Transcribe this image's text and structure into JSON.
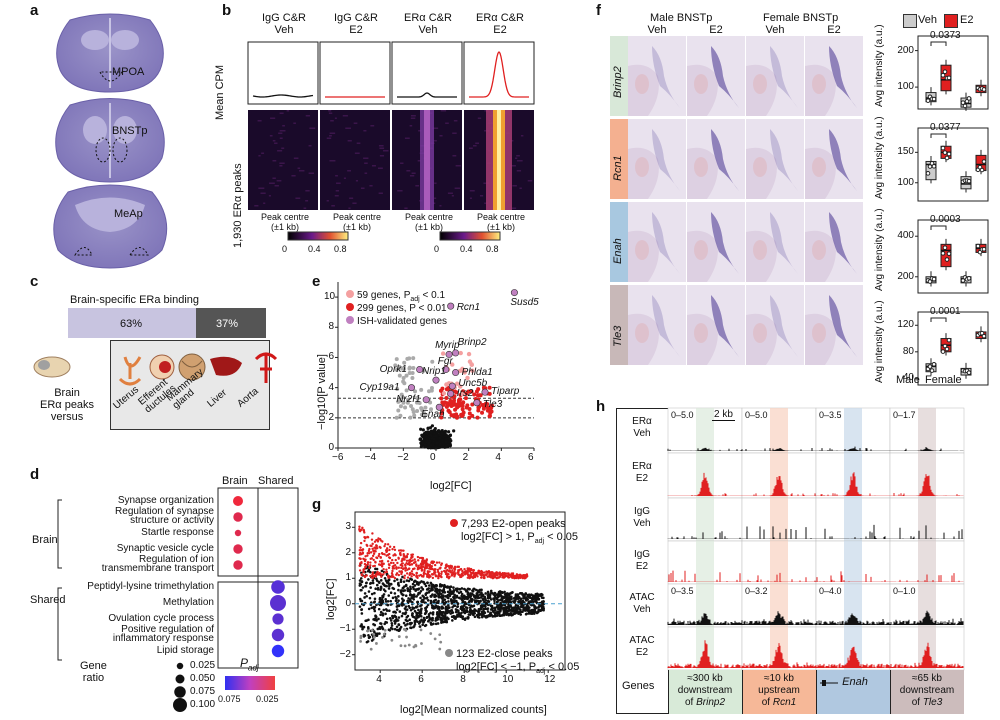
{
  "panels": {
    "a": "a",
    "b": "b",
    "c": "c",
    "d": "d",
    "e": "e",
    "f": "f",
    "g": "g",
    "h": "h"
  },
  "a": {
    "labels": [
      "MPOA",
      "BNSTp",
      "MeAp"
    ]
  },
  "b": {
    "cols": [
      {
        "t1": "IgG C&R",
        "t2": "Veh"
      },
      {
        "t1": "IgG C&R",
        "t2": "E2"
      },
      {
        "t1": "ERα C&R",
        "t2": "Veh"
      },
      {
        "t1": "ERα C&R",
        "t2": "E2"
      }
    ],
    "ylabel_top": "Mean CPM",
    "ylabel_bottom": "1,930 ERα peaks",
    "x1": "Peak centre",
    "x2": "(±1 kb)",
    "cbar": [
      "0",
      "0.4",
      "0.8"
    ]
  },
  "c": {
    "title": "Brain-specific ERa binding",
    "bar": {
      "brain_pct": "63%",
      "shared_pct": "37%",
      "brain_value": 63,
      "shared_value": 37
    },
    "left_label": [
      "Brain",
      "ERα peaks",
      "versus"
    ],
    "tissues": [
      "Uterus",
      "Efferent ductules",
      "Mammary gland",
      "Liver",
      "Aorta"
    ]
  },
  "d": {
    "cols": [
      "Brain",
      "Shared"
    ],
    "groups": [
      "Brain",
      "Shared"
    ],
    "terms": [
      {
        "l1": "Synapse organization",
        "l2": "",
        "group": "Brain",
        "col": 0,
        "size": 0.05,
        "padj": 0.025
      },
      {
        "l1": "Regulation of synapse",
        "l2": "structure or activity",
        "group": "Brain",
        "col": 0,
        "size": 0.045,
        "padj": 0.03
      },
      {
        "l1": "Startle response",
        "l2": "",
        "group": "Brain",
        "col": 0,
        "size": 0.02,
        "padj": 0.03
      },
      {
        "l1": "Synaptic vesicle cycle",
        "l2": "",
        "group": "Brain",
        "col": 0,
        "size": 0.045,
        "padj": 0.03
      },
      {
        "l1": "Regulation of ion",
        "l2": "transmembrane transport",
        "group": "Brain",
        "col": 0,
        "size": 0.045,
        "padj": 0.03
      },
      {
        "l1": "Peptidyl-lysine trimethylation",
        "l2": "",
        "group": "Shared",
        "col": 1,
        "size": 0.08,
        "padj": 0.07
      },
      {
        "l1": "Methylation",
        "l2": "",
        "group": "Shared",
        "col": 1,
        "size": 0.1,
        "padj": 0.068
      },
      {
        "l1": "Ovulation cycle process",
        "l2": "",
        "group": "Shared",
        "col": 1,
        "size": 0.06,
        "padj": 0.068
      },
      {
        "l1": "Positive regulation of",
        "l2": "inflammatory response",
        "group": "Shared",
        "col": 1,
        "size": 0.07,
        "padj": 0.068
      },
      {
        "l1": "Lipid storage",
        "l2": "",
        "group": "Shared",
        "col": 1,
        "size": 0.07,
        "padj": 0.08
      }
    ],
    "size_title": [
      "Gene",
      "ratio"
    ],
    "size_legend": [
      "0.025",
      "0.050",
      "0.075",
      "0.100"
    ],
    "padj_title": "P",
    "padj_sub": "adj",
    "padj_ticks": [
      "0.075",
      "0.025"
    ]
  },
  "e": {
    "legend": [
      {
        "label": "59 genes, P",
        "sub": "adj",
        "rest": " < 0.1",
        "color": "#f4a0a0"
      },
      {
        "label": "299 genes, P < 0.01",
        "sub": "",
        "rest": "",
        "color": "#e02020"
      },
      {
        "label": "ISH-validated genes",
        "sub": "",
        "rest": "",
        "color": "#c080c0"
      }
    ],
    "ylabel": "−log10[P value]",
    "xlabel": "log2[FC]",
    "xticks": [
      "−6",
      "−4",
      "−2",
      "0",
      "2",
      "4",
      "6"
    ],
    "yticks": [
      "0",
      "2",
      "4",
      "6",
      "8",
      "10"
    ],
    "genes": [
      {
        "name": "Susd5",
        "x": 4.8,
        "y": 10.3
      },
      {
        "name": "Rcn1",
        "x": 0.9,
        "y": 9.4
      },
      {
        "name": "Myrip",
        "x": 0.8,
        "y": 6.2
      },
      {
        "name": "Brinp2",
        "x": 1.2,
        "y": 6.3
      },
      {
        "name": "Oprk1",
        "x": -1.0,
        "y": 5.2
      },
      {
        "name": "Fgr",
        "x": 0.6,
        "y": 5.2
      },
      {
        "name": "Phlda1",
        "x": 1.2,
        "y": 5.0
      },
      {
        "name": "Nrip1",
        "x": 0.0,
        "y": 4.5
      },
      {
        "name": "Cyp19a1",
        "x": -1.5,
        "y": 4.0
      },
      {
        "name": "Unc5b",
        "x": 1.0,
        "y": 4.1
      },
      {
        "name": "Irs2",
        "x": 0.9,
        "y": 3.6
      },
      {
        "name": "Tiparp",
        "x": 3.0,
        "y": 3.7
      },
      {
        "name": "Nr2f1",
        "x": -0.6,
        "y": 3.2
      },
      {
        "name": "Tle3",
        "x": 2.5,
        "y": 3.0
      },
      {
        "name": "Enah",
        "x": 0.2,
        "y": 2.7
      }
    ]
  },
  "f": {
    "col_groups": [
      "Male BNSTp",
      "Female BNSTp"
    ],
    "cols": [
      "Veh",
      "E2",
      "Veh",
      "E2"
    ],
    "genes": [
      {
        "name": "Brinp2",
        "color": "#d8e8d8",
        "pval": "0.0373",
        "yticks": [
          "200",
          "100"
        ]
      },
      {
        "name": "Rcn1",
        "color": "#f4b090",
        "pval": "0.0377",
        "yticks": [
          "150",
          "100"
        ]
      },
      {
        "name": "Enah",
        "color": "#a8c8e0",
        "pval": "0.0003",
        "yticks": [
          "400",
          "200"
        ]
      },
      {
        "name": "Tle3",
        "color": "#c8b8b8",
        "pval": "0.0001",
        "yticks": [
          "120",
          "80",
          "40"
        ]
      }
    ],
    "legend": [
      "Veh",
      "E2"
    ],
    "ylabel": "Avg intensity (a.u.)",
    "xlabels": [
      "Male",
      "Female"
    ]
  },
  "g": {
    "ylabel": "log2[FC]",
    "xlabel": "log2[Mean normalized counts]",
    "xticks": [
      "4",
      "6",
      "8",
      "10",
      "12"
    ],
    "yticks": [
      "−2",
      "−1",
      "0",
      "1",
      "2",
      "3"
    ],
    "open_label": [
      "7,293 E2-open peaks",
      "log2[FC] > 1, P",
      "adj",
      " < 0.05"
    ],
    "close_label": [
      "123 E2-close peaks",
      "log2[FC] < −1, P",
      "adj",
      " < 0.05"
    ]
  },
  "h": {
    "tracks": [
      {
        "l1": "ERα",
        "l2": "Veh"
      },
      {
        "l1": "ERα",
        "l2": "E2"
      },
      {
        "l1": "IgG",
        "l2": "Veh"
      },
      {
        "l1": "IgG",
        "l2": "E2"
      },
      {
        "l1": "ATAC",
        "l2": "Veh"
      },
      {
        "l1": "ATAC",
        "l2": "E2"
      }
    ],
    "scales_top": [
      "0–5.0",
      "0–5.0",
      "0–3.5",
      "0–1.7"
    ],
    "scales_atac": [
      "0–3.5",
      "0–3.2",
      "0–4.0",
      "0–1.0"
    ],
    "scalebar": "2 kb",
    "genes_label": "Genes",
    "gene_cells": [
      {
        "l1": "≈300 kb",
        "l2": "downstream",
        "l3": "of ",
        "gene": "Brinp2",
        "color": "#d8ead8"
      },
      {
        "l1": "≈10 kb",
        "l2": "upstream",
        "l3": "of ",
        "gene": "Rcn1",
        "color": "#f6b898"
      },
      {
        "l1": "",
        "l2": "",
        "l3": "",
        "gene": "Enah",
        "color": "#b0c8e0"
      },
      {
        "l1": "≈65 kb",
        "l2": "downstream",
        "l3": "of ",
        "gene": "Tle3",
        "color": "#ccbcbc"
      }
    ]
  }
}
